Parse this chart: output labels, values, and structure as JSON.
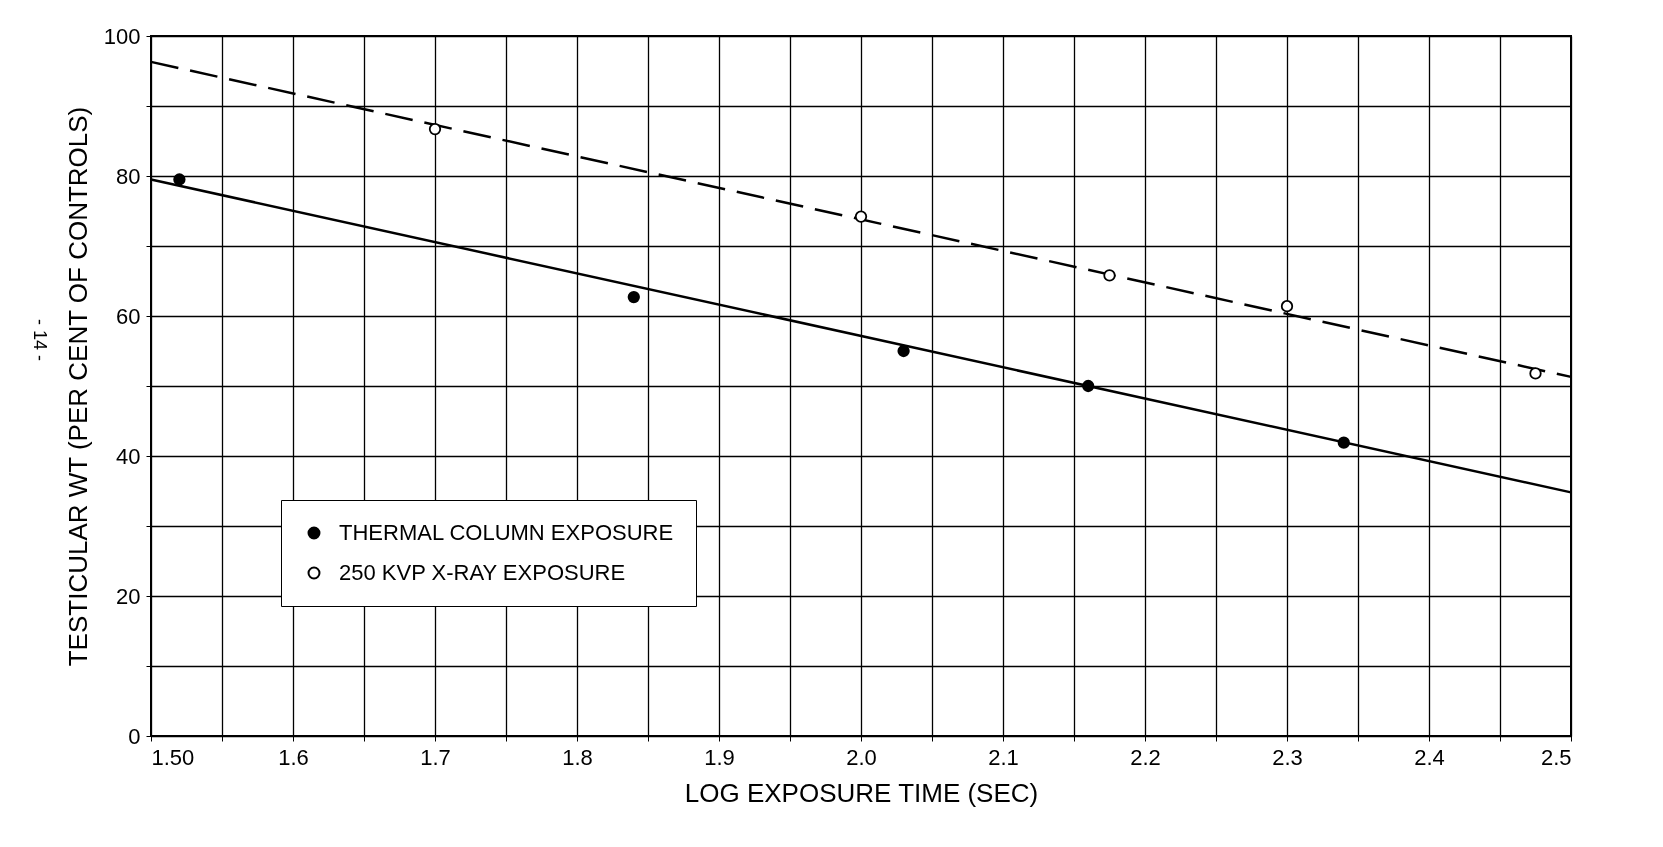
{
  "chart_data": {
    "type": "scatter",
    "xlabel": "LOG EXPOSURE TIME (SEC)",
    "ylabel": "TESTICULAR WT (PER CENT OF CONTROLS)",
    "xlim": [
      1.5,
      2.5
    ],
    "ylim": [
      0,
      100
    ],
    "xticks": [
      {
        "value": 1.5,
        "label": "1.50"
      },
      {
        "value": 1.55,
        "label": null
      },
      1.6,
      {
        "value": 1.65,
        "label": null
      },
      1.7,
      {
        "value": 1.75,
        "label": null
      },
      1.8,
      {
        "value": 1.85,
        "label": null
      },
      1.9,
      {
        "value": 1.95,
        "label": null
      },
      {
        "value": 2,
        "label": "2.0"
      },
      {
        "value": 2.05,
        "label": null
      },
      2.1,
      {
        "value": 2.15,
        "label": null
      },
      2.2,
      {
        "value": 2.25,
        "label": null
      },
      2.3,
      {
        "value": 2.35,
        "label": null
      },
      2.4,
      {
        "value": 2.45,
        "label": null
      },
      2.5
    ],
    "yticks": [
      0,
      {
        "value": 10,
        "label": null
      },
      20,
      {
        "value": 30,
        "label": null
      },
      40,
      {
        "value": 50,
        "label": null
      },
      60,
      {
        "value": 70,
        "label": null
      },
      80,
      {
        "value": 90,
        "label": null
      },
      100
    ],
    "grid": true,
    "legend": "bottom left",
    "marker": "circle",
    "annotations": [
      "- 14 -"
    ],
    "series": [
      {
        "type": "line",
        "marker": "none",
        "color": "#000000",
        "line_style": "solid",
        "x": [
          1.5,
          2.5
        ],
        "values": [
          79.5,
          34.8
        ]
      },
      {
        "type": "line",
        "marker": "none",
        "color": "#000000",
        "line_style": "dashed",
        "x": [
          1.5,
          2.5
        ],
        "values": [
          96.3,
          51.3
        ]
      },
      {
        "name": "THERMAL COLUMN EXPOSURE",
        "color": "#000000",
        "x": [
          1.52,
          1.84,
          2.03,
          2.16,
          2.34
        ],
        "values": [
          79.5,
          62.7,
          55,
          50,
          41.9
        ]
      },
      {
        "name": "250 KVP X-RAY EXPOSURE",
        "color": "#ffffff",
        "x": [
          1.7,
          2.0,
          2.175,
          2.3,
          2.475
        ],
        "values": [
          86.7,
          74.2,
          65.8,
          61.4,
          51.8
        ]
      }
    ]
  }
}
